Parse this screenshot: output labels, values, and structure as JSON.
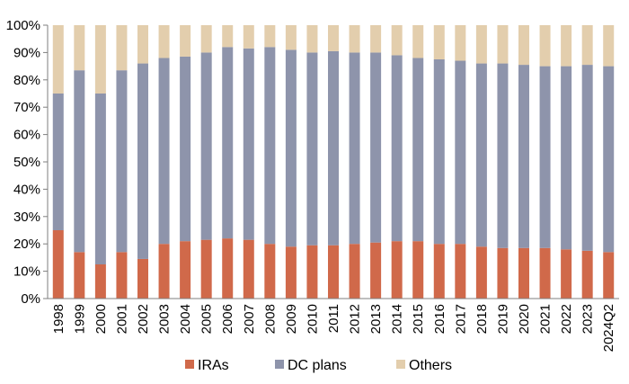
{
  "chart_data": {
    "type": "bar",
    "stacked": true,
    "title": "",
    "xlabel": "",
    "ylabel": "",
    "ylim": [
      0,
      100
    ],
    "yticks": [
      0,
      10,
      20,
      30,
      40,
      50,
      60,
      70,
      80,
      90,
      100
    ],
    "ytick_suffix": "%",
    "grid": false,
    "legend_position": "bottom",
    "categories": [
      "1998",
      "1999",
      "2000",
      "2001",
      "2002",
      "2003",
      "2004",
      "2005",
      "2006",
      "2007",
      "2008",
      "2009",
      "2010",
      "2011",
      "2012",
      "2013",
      "2014",
      "2015",
      "2016",
      "2017",
      "2018",
      "2019",
      "2020",
      "2021",
      "2022",
      "2023",
      "2024Q2"
    ],
    "series": [
      {
        "name": "IRAs",
        "color": "#D0694A",
        "values": [
          25,
          17,
          12.5,
          17,
          14.5,
          20,
          21,
          21.5,
          22,
          21.5,
          20,
          19,
          19.5,
          19.5,
          20,
          20.5,
          21,
          21,
          20,
          20,
          19,
          18.5,
          18.5,
          18.5,
          18,
          17.5,
          17
        ]
      },
      {
        "name": "DC plans",
        "color": "#8E94AB",
        "values": [
          50,
          66.5,
          62.5,
          66.5,
          71.5,
          68,
          67.5,
          68.5,
          70,
          70,
          72,
          72,
          70.5,
          71,
          70,
          69.5,
          68,
          67,
          67.5,
          67,
          67,
          67.5,
          67,
          66.5,
          67,
          68,
          68
        ]
      },
      {
        "name": "Others",
        "color": "#E3CEAD",
        "values": [
          25,
          16.5,
          25,
          16.5,
          14,
          12,
          11.5,
          10,
          8,
          8.5,
          8,
          9,
          10,
          9.5,
          10,
          10,
          11,
          12,
          12.5,
          13,
          14,
          14,
          14.5,
          15,
          15,
          14.5,
          15
        ]
      }
    ]
  }
}
